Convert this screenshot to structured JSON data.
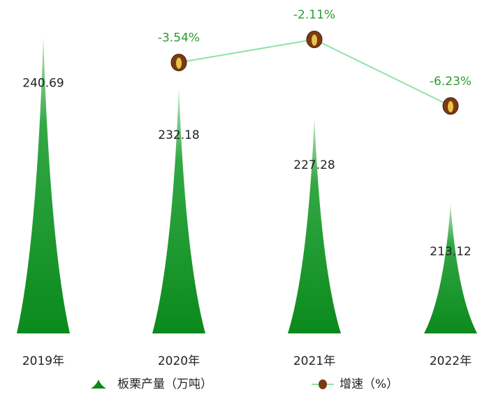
{
  "chart_data": {
    "type": "bar",
    "categories": [
      "2019年",
      "2020年",
      "2021年",
      "2022年"
    ],
    "series": [
      {
        "name": "板栗产量（万吨）",
        "type": "bar",
        "color": "#0b8a1c",
        "values": [
          240.69,
          232.18,
          227.28,
          213.12
        ]
      },
      {
        "name": "增速（%）",
        "type": "line",
        "axis": "y2",
        "color": "#8fe3a8",
        "values": [
          null,
          -3.54,
          -2.11,
          -6.23
        ],
        "value_labels": [
          null,
          "-3.54%",
          "-2.11%",
          "-6.23%"
        ]
      }
    ],
    "ylim": [
      192,
      242
    ],
    "y2lim": [
      -20.3,
      -1.4
    ],
    "grid": false
  }
}
